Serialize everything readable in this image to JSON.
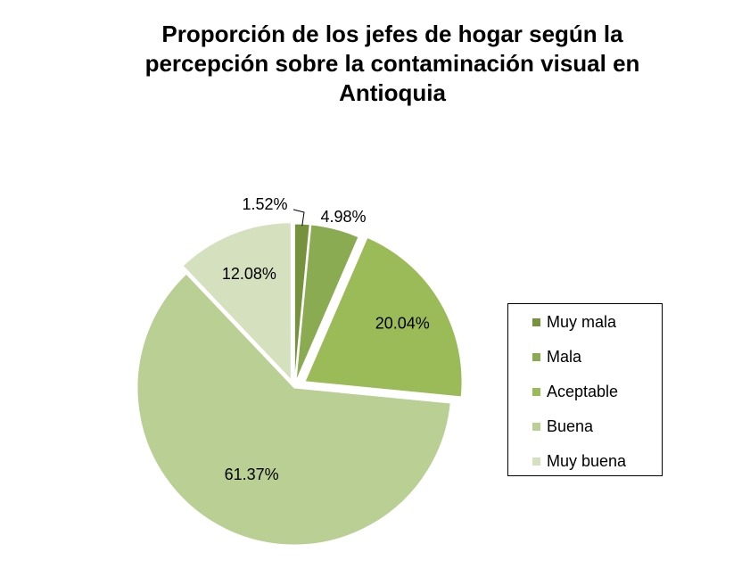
{
  "chart_data": {
    "type": "pie",
    "title": "Proporción de los jefes de  hogar según la percepción sobre la contaminación visual en Antioquia",
    "categories": [
      "Muy mala",
      "Mala",
      "Aceptable",
      "Buena",
      "Muy buena"
    ],
    "values": [
      1.52,
      4.98,
      20.04,
      61.37,
      12.08
    ],
    "data_labels": [
      "1.52%",
      "4.98%",
      "20.04%",
      "61.37%",
      "12.08%"
    ],
    "colors": [
      "#76923c",
      "#8aab52",
      "#9bbb59",
      "#b9cf94",
      "#d4e0be"
    ],
    "exploded": true,
    "legend": {
      "position": "right"
    }
  }
}
